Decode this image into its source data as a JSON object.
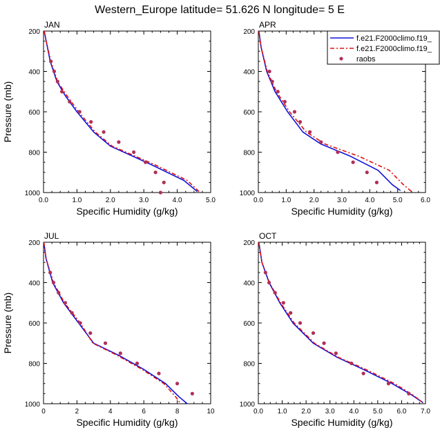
{
  "figure_title": "Western_Europe  latitude= 51.626 N longitude= 5 E",
  "colors": {
    "model1": "#1010d8",
    "model2": "#e01010",
    "raobs": "#b03058",
    "axis": "#000000"
  },
  "legend": [
    {
      "label": "f.e21.F2000climo.f19_",
      "style": "solid",
      "color_key": "model1"
    },
    {
      "label": "f.e21.F2000climo.f19_",
      "style": "dashed",
      "color_key": "model2"
    },
    {
      "label": "raobs",
      "style": "dot",
      "color_key": "raobs"
    }
  ],
  "chart_data": [
    {
      "type": "line",
      "panel": "JAN",
      "xlabel": "Specific Humidity (g/kg)",
      "ylabel": "Pressure (mb)",
      "xlim": [
        0,
        5
      ],
      "xticks": [
        0,
        1,
        2,
        3,
        4,
        5
      ],
      "xticklabels": [
        "0.0",
        "1.0",
        "2.0",
        "3.0",
        "4.0",
        "5.0"
      ],
      "ylim": [
        200,
        1000
      ],
      "yticks": [
        200,
        400,
        600,
        800,
        1000
      ],
      "yticklabels": [
        "200",
        "400",
        "600",
        "800",
        "1000"
      ],
      "y_inverted": true,
      "series": [
        {
          "name": "f.e21.F2000climo.f19_ (solid)",
          "style": "solid",
          "color_key": "model1",
          "points": [
            [
              0.02,
              200
            ],
            [
              0.08,
              250
            ],
            [
              0.2,
              350
            ],
            [
              0.4,
              450
            ],
            [
              0.65,
              520
            ],
            [
              1.0,
              600
            ],
            [
              1.5,
              700
            ],
            [
              2.0,
              770
            ],
            [
              3.2,
              860
            ],
            [
              4.2,
              940
            ],
            [
              4.6,
              995
            ]
          ]
        },
        {
          "name": "f.e21.F2000climo.f19_ (dashed)",
          "style": "dashed",
          "color_key": "model2",
          "points": [
            [
              0.02,
              200
            ],
            [
              0.08,
              250
            ],
            [
              0.22,
              350
            ],
            [
              0.42,
              450
            ],
            [
              0.7,
              520
            ],
            [
              1.05,
              600
            ],
            [
              1.55,
              700
            ],
            [
              2.05,
              770
            ],
            [
              3.3,
              860
            ],
            [
              4.3,
              940
            ],
            [
              4.65,
              995
            ]
          ]
        },
        {
          "name": "raobs",
          "style": "dot",
          "color_key": "raobs",
          "points": [
            [
              0.22,
              350
            ],
            [
              0.32,
              400
            ],
            [
              0.42,
              450
            ],
            [
              0.55,
              500
            ],
            [
              0.78,
              550
            ],
            [
              1.08,
              600
            ],
            [
              1.42,
              650
            ],
            [
              1.8,
              700
            ],
            [
              2.25,
              750
            ],
            [
              2.7,
              800
            ],
            [
              3.05,
              850
            ],
            [
              3.35,
              900
            ],
            [
              3.6,
              950
            ],
            [
              3.5,
              1000
            ]
          ]
        }
      ]
    },
    {
      "type": "line",
      "panel": "APR",
      "xlabel": "Specific Humidity (g/kg)",
      "ylabel": "",
      "xlim": [
        0,
        6
      ],
      "xticks": [
        0,
        1,
        2,
        3,
        4,
        5,
        6
      ],
      "xticklabels": [
        "0.0",
        "1.0",
        "2.0",
        "3.0",
        "4.0",
        "5.0",
        "6.0"
      ],
      "ylim": [
        200,
        1000
      ],
      "yticks": [
        200,
        400,
        600,
        800,
        1000
      ],
      "yticklabels": [
        "200",
        "400",
        "600",
        "800",
        "1000"
      ],
      "y_inverted": true,
      "series": [
        {
          "name": "f.e21.F2000climo.f19_ (solid)",
          "style": "solid",
          "color_key": "model1",
          "points": [
            [
              0.02,
              200
            ],
            [
              0.1,
              280
            ],
            [
              0.3,
              400
            ],
            [
              0.6,
              500
            ],
            [
              1.05,
              600
            ],
            [
              1.6,
              700
            ],
            [
              2.25,
              760
            ],
            [
              3.3,
              820
            ],
            [
              4.3,
              890
            ],
            [
              4.8,
              960
            ],
            [
              5.1,
              990
            ]
          ]
        },
        {
          "name": "f.e21.F2000climo.f19_ (dashed)",
          "style": "dashed",
          "color_key": "model2",
          "points": [
            [
              0.02,
              200
            ],
            [
              0.1,
              280
            ],
            [
              0.32,
              400
            ],
            [
              0.65,
              500
            ],
            [
              1.12,
              600
            ],
            [
              1.72,
              700
            ],
            [
              2.4,
              760
            ],
            [
              3.6,
              820
            ],
            [
              4.7,
              890
            ],
            [
              5.2,
              960
            ],
            [
              5.5,
              995
            ]
          ]
        },
        {
          "name": "raobs",
          "style": "dot",
          "color_key": "raobs",
          "points": [
            [
              0.4,
              400
            ],
            [
              0.5,
              450
            ],
            [
              0.7,
              500
            ],
            [
              0.95,
              550
            ],
            [
              1.3,
              600
            ],
            [
              1.5,
              650
            ],
            [
              1.85,
              700
            ],
            [
              2.25,
              750
            ],
            [
              2.85,
              800
            ],
            [
              3.4,
              850
            ],
            [
              3.9,
              900
            ],
            [
              4.25,
              950
            ]
          ]
        }
      ]
    },
    {
      "type": "line",
      "panel": "JUL",
      "xlabel": "Specific Humidity (g/kg)",
      "ylabel": "Pressure (mb)",
      "xlim": [
        0,
        10
      ],
      "xticks": [
        0,
        2,
        4,
        6,
        8,
        10
      ],
      "xticklabels": [
        "0",
        "2",
        "4",
        "6",
        "8",
        "10"
      ],
      "ylim": [
        200,
        1000
      ],
      "yticks": [
        200,
        400,
        600,
        800,
        1000
      ],
      "yticklabels": [
        "200",
        "400",
        "600",
        "800",
        "1000"
      ],
      "y_inverted": true,
      "series": [
        {
          "name": "f.e21.F2000climo.f19_ (solid)",
          "style": "solid",
          "color_key": "model1",
          "points": [
            [
              0.02,
              200
            ],
            [
              0.15,
              280
            ],
            [
              0.55,
              400
            ],
            [
              1.2,
              500
            ],
            [
              2.1,
              600
            ],
            [
              3.0,
              700
            ],
            [
              4.5,
              760
            ],
            [
              6.0,
              830
            ],
            [
              7.3,
              900
            ],
            [
              8.1,
              965
            ],
            [
              8.6,
              1000
            ]
          ]
        },
        {
          "name": "f.e21.F2000climo.f19_ (dashed)",
          "style": "dashed",
          "color_key": "model2",
          "points": [
            [
              0.02,
              200
            ],
            [
              0.15,
              280
            ],
            [
              0.6,
              400
            ],
            [
              1.25,
              500
            ],
            [
              2.2,
              600
            ],
            [
              2.95,
              700
            ],
            [
              4.4,
              760
            ],
            [
              5.9,
              830
            ],
            [
              7.2,
              900
            ],
            [
              7.9,
              965
            ],
            [
              8.2,
              1000
            ]
          ]
        },
        {
          "name": "raobs",
          "style": "dot",
          "color_key": "raobs",
          "points": [
            [
              0.4,
              350
            ],
            [
              0.6,
              400
            ],
            [
              0.9,
              450
            ],
            [
              1.3,
              500
            ],
            [
              1.7,
              550
            ],
            [
              2.2,
              600
            ],
            [
              2.8,
              650
            ],
            [
              3.7,
              700
            ],
            [
              4.6,
              750
            ],
            [
              5.6,
              800
            ],
            [
              6.9,
              850
            ],
            [
              8.0,
              900
            ],
            [
              8.9,
              950
            ]
          ]
        }
      ]
    },
    {
      "type": "line",
      "panel": "OCT",
      "xlabel": "Specific Humidity (g/kg)",
      "ylabel": "",
      "xlim": [
        0,
        7
      ],
      "xticks": [
        0,
        1,
        2,
        3,
        4,
        5,
        6,
        7
      ],
      "xticklabels": [
        "0.0",
        "1.0",
        "2.0",
        "3.0",
        "4.0",
        "5.0",
        "6.0",
        "7.0"
      ],
      "ylim": [
        200,
        1000
      ],
      "yticks": [
        200,
        400,
        600,
        800,
        1000
      ],
      "yticklabels": [
        "200",
        "400",
        "600",
        "800",
        "1000"
      ],
      "y_inverted": true,
      "series": [
        {
          "name": "f.e21.F2000climo.f19_ (solid)",
          "style": "solid",
          "color_key": "model1",
          "points": [
            [
              0.02,
              200
            ],
            [
              0.15,
              300
            ],
            [
              0.45,
              400
            ],
            [
              0.9,
              500
            ],
            [
              1.45,
              600
            ],
            [
              2.3,
              700
            ],
            [
              3.3,
              770
            ],
            [
              4.4,
              830
            ],
            [
              5.6,
              900
            ],
            [
              6.4,
              955
            ],
            [
              6.9,
              995
            ]
          ]
        },
        {
          "name": "f.e21.F2000climo.f19_ (dashed)",
          "style": "dashed",
          "color_key": "model2",
          "points": [
            [
              0.02,
              200
            ],
            [
              0.15,
              300
            ],
            [
              0.47,
              400
            ],
            [
              0.93,
              500
            ],
            [
              1.5,
              600
            ],
            [
              2.35,
              700
            ],
            [
              3.35,
              770
            ],
            [
              4.5,
              830
            ],
            [
              5.7,
              900
            ],
            [
              6.45,
              955
            ],
            [
              6.9,
              995
            ]
          ]
        },
        {
          "name": "raobs",
          "style": "dot",
          "color_key": "raobs",
          "points": [
            [
              0.3,
              350
            ],
            [
              0.45,
              400
            ],
            [
              0.7,
              450
            ],
            [
              1.05,
              500
            ],
            [
              1.35,
              550
            ],
            [
              1.75,
              600
            ],
            [
              2.3,
              650
            ],
            [
              2.75,
              700
            ],
            [
              3.25,
              750
            ],
            [
              3.9,
              800
            ],
            [
              4.4,
              850
            ],
            [
              5.45,
              900
            ],
            [
              6.3,
              950
            ]
          ]
        }
      ]
    }
  ]
}
